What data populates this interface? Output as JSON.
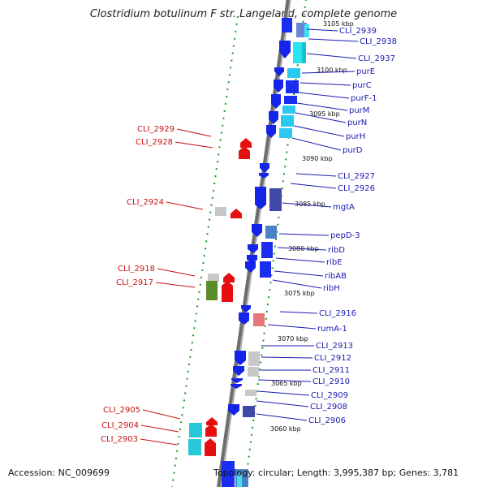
{
  "title": "Clostridium botulinum F str. Langeland, complete genome",
  "footer": {
    "accession": "Accession: NC_009699",
    "topology": "Topology: circular; Length: 3,995,387 bp; Genes: 3,781"
  },
  "colors": {
    "minus_strand": "#0f1ee6",
    "plus_strand": "#e60f0f",
    "label_minus": "#1a1ab0",
    "label_plus": "#c81414",
    "backbone": "#7a7a7a",
    "dots": "#1a9a1a"
  },
  "scale_ticks": [
    {
      "label": "3105 kbp"
    },
    {
      "label": "3100 kbp"
    },
    {
      "label": "3095 kbp"
    },
    {
      "label": "3090 kbp"
    },
    {
      "label": "3085 kbp"
    },
    {
      "label": "3080 kbp"
    },
    {
      "label": "3075 kbp"
    },
    {
      "label": "3070 kbp"
    },
    {
      "label": "3065 kbp"
    },
    {
      "label": "3060 kbp"
    }
  ],
  "right_labels": [
    "CLI_2939",
    "CLI_2938",
    "CLI_2937",
    "purE",
    "purC",
    "purF-1",
    "purM",
    "purN",
    "purH",
    "purD",
    "CLI_2927",
    "CLI_2926",
    "mgtA",
    "pepD-3",
    "ribD",
    "ribE",
    "ribAB",
    "ribH",
    "CLI_2916",
    "rumA-1",
    "CLI_2913",
    "CLI_2912",
    "CLI_2911",
    "CLI_2910",
    "CLI_2909",
    "CLI_2908",
    "CLI_2906"
  ],
  "left_labels": [
    "CLI_2929",
    "CLI_2928",
    "CLI_2924",
    "CLI_2918",
    "CLI_2917",
    "CLI_2905",
    "CLI_2904",
    "CLI_2903"
  ]
}
